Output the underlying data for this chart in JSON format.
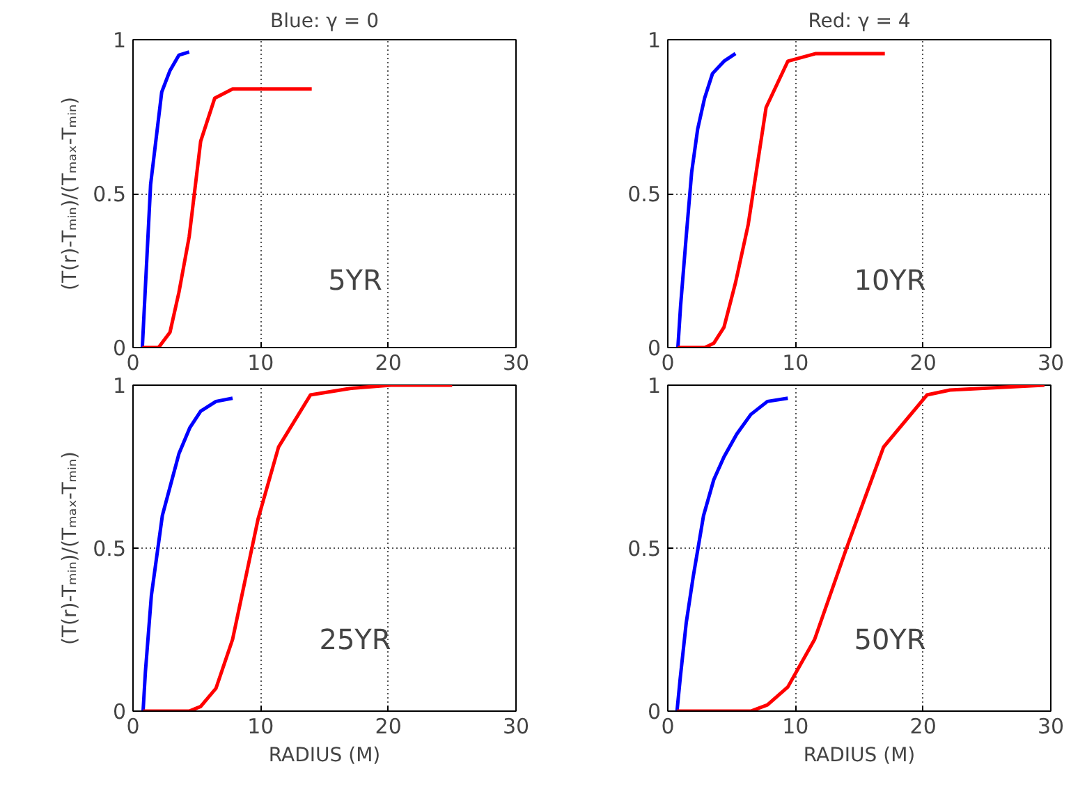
{
  "chart_data": [
    {
      "type": "line",
      "title": "Blue: γ = 0",
      "ylabel": "(T(r)-Tₘᵢₙ)/(Tₘₐₓ-Tₘᵢₙ)",
      "xlim": [
        0,
        30
      ],
      "ylim": [
        0,
        1
      ],
      "xticks": [
        0,
        10,
        20,
        30
      ],
      "yticks": [
        0,
        0.5,
        1
      ],
      "grid": true,
      "line_style": "solid",
      "annotations": [
        "5YR"
      ],
      "series": [
        {
          "color": "#0000ff",
          "x": [
            0.73,
            1.38,
            2.25,
            2.9,
            3.6,
            4.4
          ],
          "values": [
            0,
            0.53,
            0.83,
            0.9,
            0.95,
            0.96
          ]
        },
        {
          "color": "#ff0000",
          "x": [
            0.73,
            2.0,
            2.9,
            3.6,
            4.4,
            5.3,
            6.4,
            7.8,
            14.0
          ],
          "values": [
            0,
            0,
            0.05,
            0.18,
            0.36,
            0.67,
            0.81,
            0.84,
            0.84
          ]
        }
      ]
    },
    {
      "type": "line",
      "title": "Red: γ = 4",
      "xlim": [
        0,
        30
      ],
      "ylim": [
        0,
        1
      ],
      "xticks": [
        0,
        10,
        20,
        30
      ],
      "yticks": [
        0,
        0.5,
        1
      ],
      "grid": true,
      "line_style": "solid",
      "annotations": [
        "10YR"
      ],
      "series": [
        {
          "color": "#0000ff",
          "x": [
            0.79,
            1.0,
            1.44,
            1.87,
            2.34,
            2.88,
            3.5,
            4.4,
            5.3
          ],
          "values": [
            0,
            0.135,
            0.36,
            0.57,
            0.71,
            0.81,
            0.89,
            0.93,
            0.955
          ]
        },
        {
          "color": "#ff0000",
          "x": [
            0.79,
            2.9,
            3.6,
            4.4,
            5.3,
            6.3,
            7.7,
            9.4,
            11.6,
            17.0
          ],
          "values": [
            0,
            0,
            0.014,
            0.066,
            0.21,
            0.4,
            0.78,
            0.93,
            0.955,
            0.955
          ]
        }
      ]
    },
    {
      "type": "line",
      "ylabel": "(T(r)-Tₘᵢₙ)/(Tₘₐₓ-Tₘᵢₙ)",
      "xlabel": "RADIUS (M)",
      "xlim": [
        0,
        30
      ],
      "ylim": [
        0,
        1
      ],
      "xticks": [
        0,
        10,
        20,
        30
      ],
      "yticks": [
        0,
        0.5,
        1
      ],
      "grid": true,
      "line_style": "solid",
      "annotations": [
        "25YR"
      ],
      "series": [
        {
          "color": "#0000ff",
          "x": [
            0.79,
            0.97,
            1.44,
            2.3,
            3.6,
            4.46,
            5.3,
            6.5,
            7.8
          ],
          "values": [
            0,
            0.12,
            0.355,
            0.6,
            0.79,
            0.87,
            0.92,
            0.95,
            0.96
          ]
        },
        {
          "color": "#ff0000",
          "x": [
            0.79,
            4.4,
            5.3,
            6.5,
            7.8,
            9.8,
            11.4,
            13.9,
            17.0,
            20.2,
            25.0
          ],
          "values": [
            0,
            0,
            0.014,
            0.07,
            0.22,
            0.59,
            0.81,
            0.97,
            0.99,
            1.0,
            1.0
          ]
        }
      ]
    },
    {
      "type": "line",
      "xlabel": "RADIUS (M)",
      "xlim": [
        0,
        30
      ],
      "ylim": [
        0,
        1
      ],
      "xticks": [
        0,
        10,
        20,
        30
      ],
      "yticks": [
        0,
        0.5,
        1
      ],
      "grid": true,
      "line_style": "solid",
      "annotations": [
        "50YR"
      ],
      "series": [
        {
          "color": "#0000ff",
          "x": [
            0.72,
            0.97,
            1.44,
            1.98,
            2.8,
            3.6,
            4.4,
            5.4,
            6.5,
            7.8,
            9.4
          ],
          "values": [
            0,
            0.1,
            0.27,
            0.41,
            0.6,
            0.71,
            0.78,
            0.85,
            0.91,
            0.95,
            0.96
          ]
        },
        {
          "color": "#ff0000",
          "x": [
            0.72,
            6.5,
            7.8,
            9.4,
            11.5,
            14.0,
            16.9,
            20.3,
            22.1,
            29.5
          ],
          "values": [
            0,
            0,
            0.019,
            0.074,
            0.22,
            0.5,
            0.81,
            0.97,
            0.985,
            1.0
          ]
        }
      ]
    }
  ]
}
